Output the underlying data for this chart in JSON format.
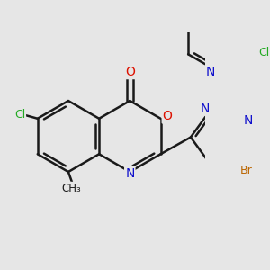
{
  "bg_color": "#e6e6e6",
  "bond_color": "#1a1a1a",
  "bond_width": 1.8,
  "dbo": 0.013,
  "atom_colors": {
    "O": "#dd1100",
    "N": "#1111cc",
    "Cl": "#22aa22",
    "Br": "#bb6600",
    "C": "#1a1a1a"
  },
  "afs": 9.0,
  "figsize": [
    3.0,
    3.0
  ],
  "dpi": 100
}
